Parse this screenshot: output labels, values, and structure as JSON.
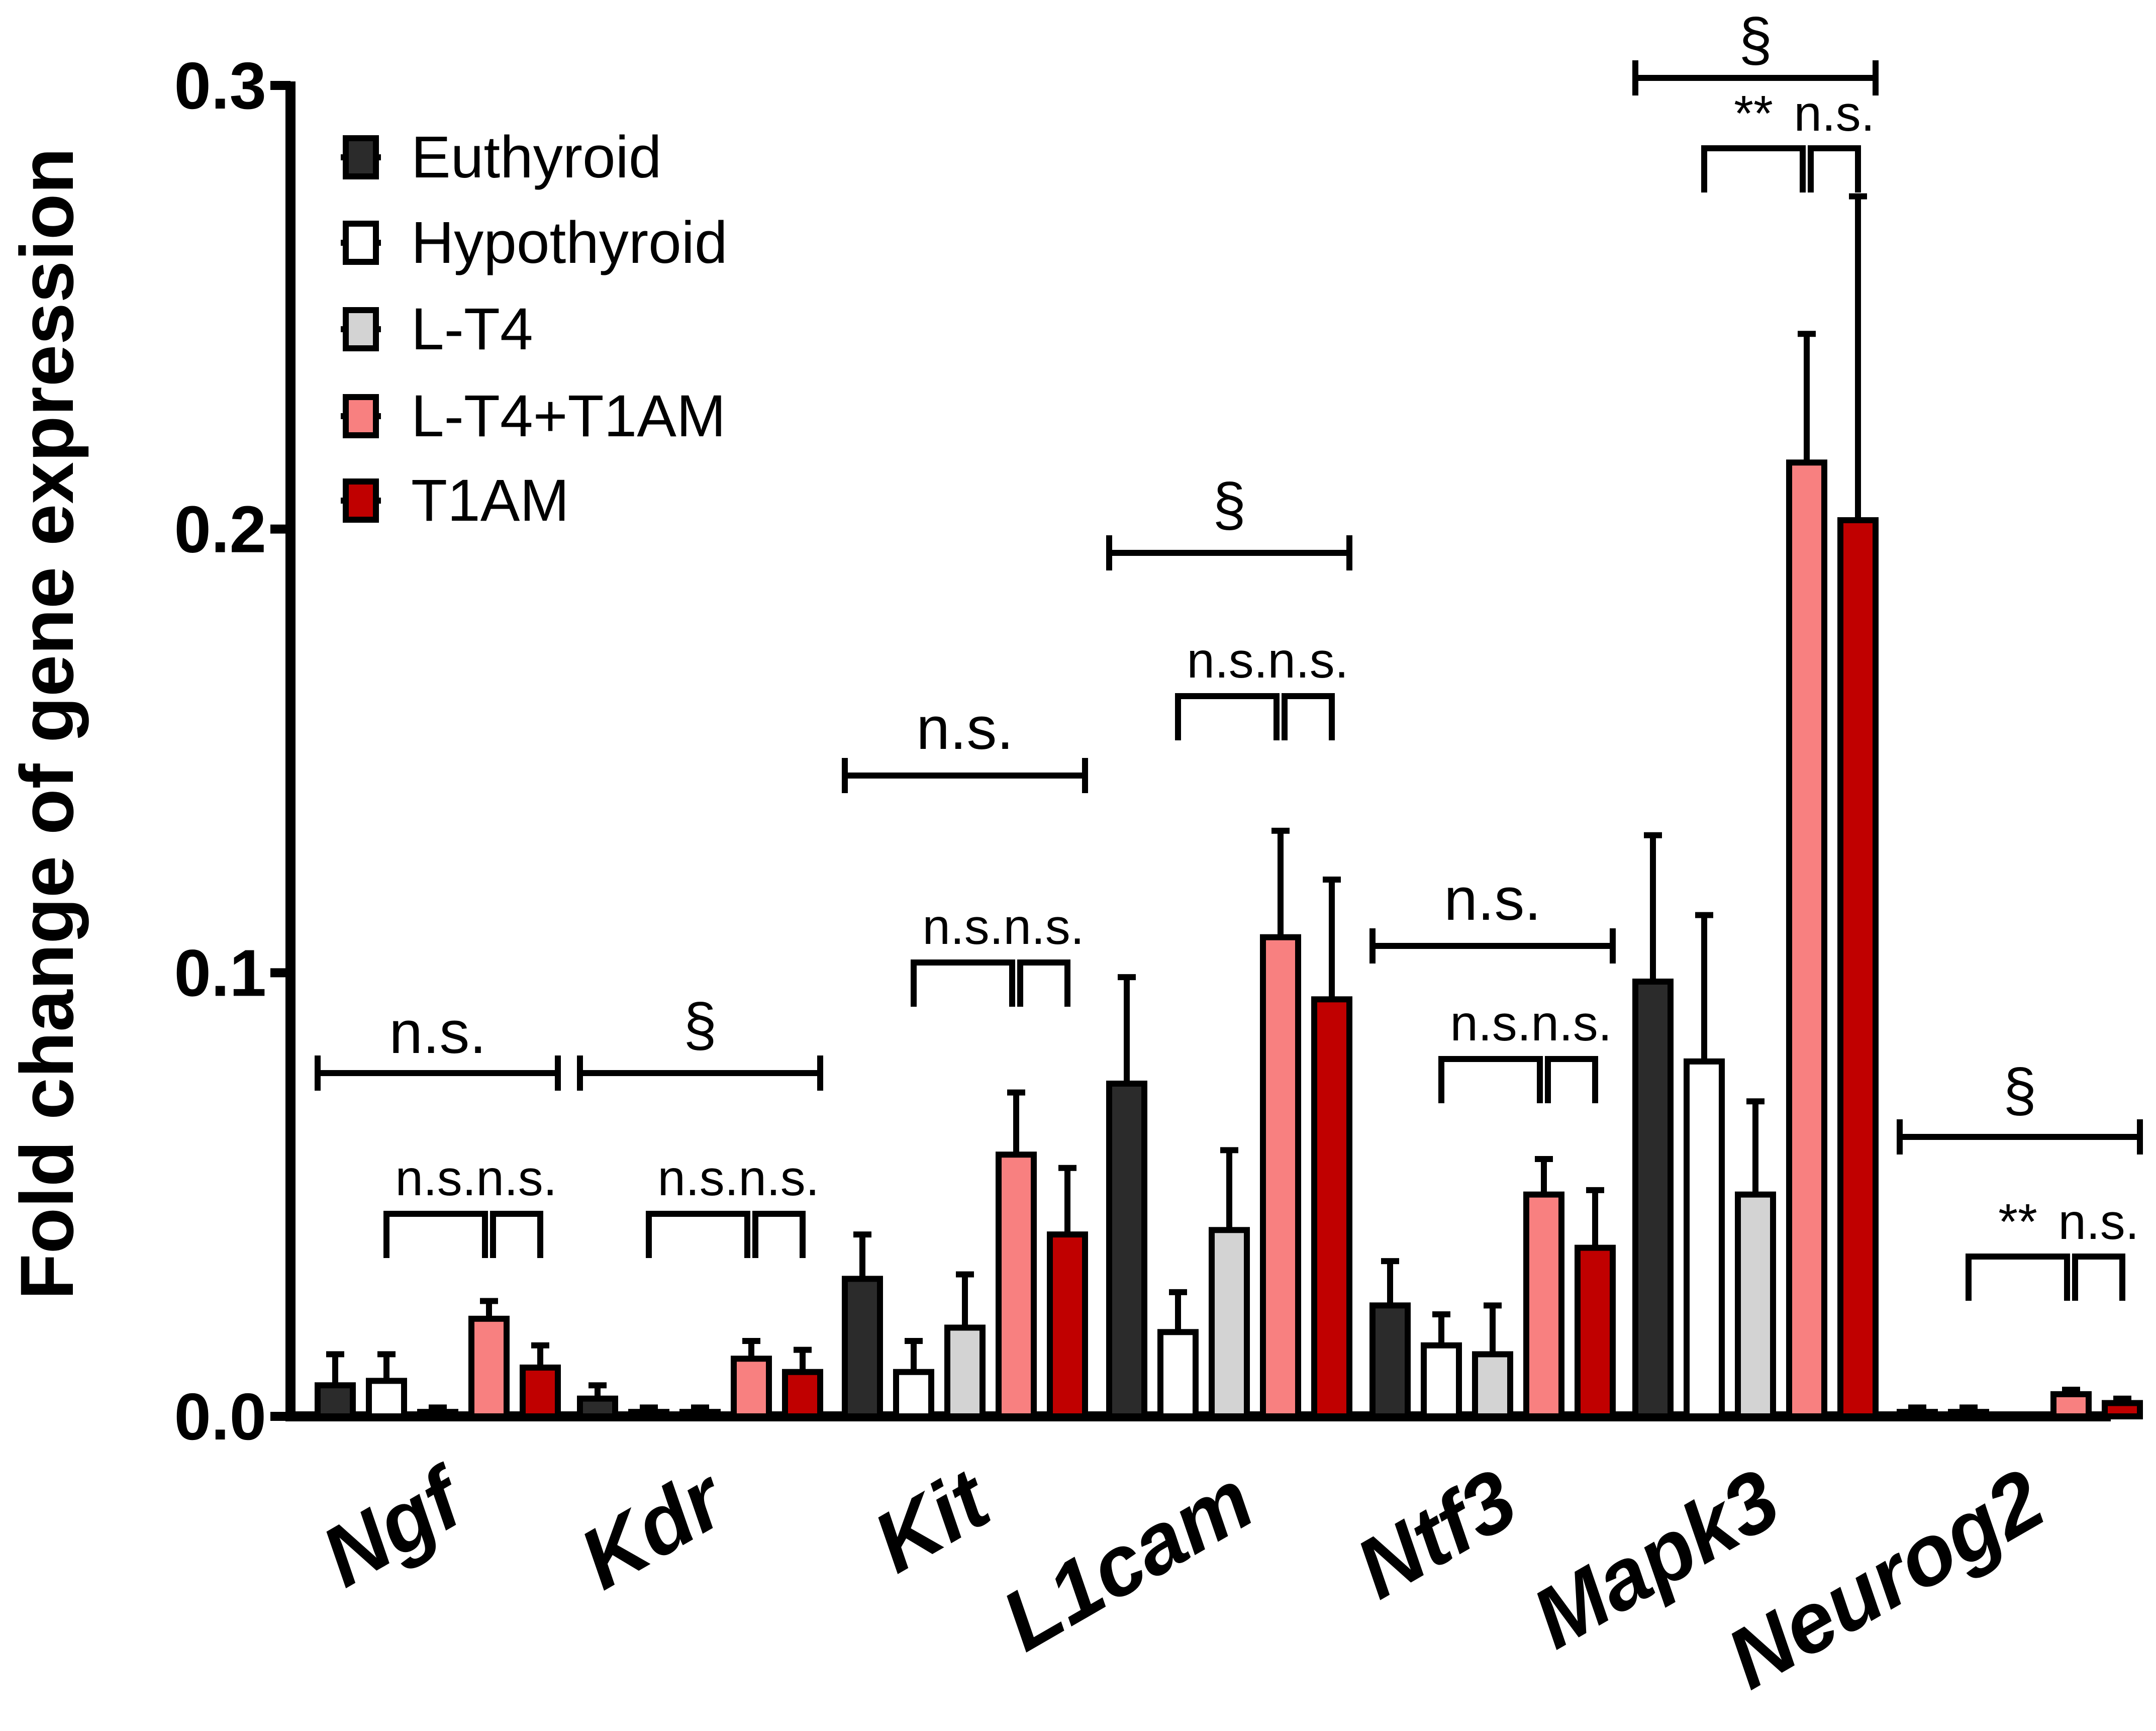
{
  "chart_data": {
    "type": "bar",
    "title": "",
    "xlabel": "",
    "ylabel": "Fold change of gene expression",
    "ylim": [
      0,
      0.3
    ],
    "yticks": [
      "0.0",
      "0.1",
      "0.2",
      "0.3"
    ],
    "ytick_values": [
      0,
      0.1,
      0.2,
      0.3
    ],
    "grid": false,
    "legend_position": "top-left",
    "categories": [
      "Ngf",
      "Kdr",
      "Kit",
      "L1cam",
      "Ntf3",
      "Mapk3",
      "Neurog2"
    ],
    "series": [
      {
        "name": "Euthyroid",
        "color": "#2b2b2b",
        "values": [
          0.007,
          0.004,
          0.031,
          0.075,
          0.025,
          0.098,
          0.001
        ],
        "errors": [
          0.007,
          0.003,
          0.01,
          0.024,
          0.01,
          0.033,
          0.001
        ]
      },
      {
        "name": "Hypothyroid",
        "color": "#ffffff",
        "values": [
          0.008,
          0.001,
          0.01,
          0.019,
          0.016,
          0.08,
          0.001
        ],
        "errors": [
          0.006,
          0.001,
          0.007,
          0.009,
          0.007,
          0.033,
          0.001
        ]
      },
      {
        "name": "L-T4",
        "color": "#d3d3d3",
        "values": [
          0.001,
          0.001,
          0.02,
          0.042,
          0.014,
          0.05,
          0.0
        ],
        "errors": [
          0.001,
          0.001,
          0.012,
          0.018,
          0.011,
          0.021,
          0.0
        ]
      },
      {
        "name": "L-T4+T1AM",
        "color": "#f88080",
        "values": [
          0.022,
          0.013,
          0.059,
          0.108,
          0.05,
          0.215,
          0.005
        ],
        "errors": [
          0.004,
          0.004,
          0.014,
          0.024,
          0.008,
          0.029,
          0.001
        ]
      },
      {
        "name": "T1AM",
        "color": "#c00000",
        "values": [
          0.011,
          0.01,
          0.041,
          0.094,
          0.038,
          0.202,
          0.003
        ],
        "errors": [
          0.005,
          0.005,
          0.015,
          0.027,
          0.013,
          0.073,
          0.001
        ]
      }
    ],
    "annotations": [
      {
        "category": "Ngf",
        "overall": "n.s.",
        "pair1": "n.s.",
        "pair2": "n.s."
      },
      {
        "category": "Kdr",
        "overall": "§",
        "pair1": "n.s.",
        "pair2": "n.s."
      },
      {
        "category": "Kit",
        "overall": "n.s.",
        "pair1": "n.s.",
        "pair2": "n.s."
      },
      {
        "category": "L1cam",
        "overall": "§",
        "pair1": "n.s.",
        "pair2": "n.s."
      },
      {
        "category": "Ntf3",
        "overall": "n.s.",
        "pair1": "n.s.",
        "pair2": "n.s."
      },
      {
        "category": "Mapk3",
        "overall": "§",
        "pair1": "**",
        "pair2": "n.s."
      },
      {
        "category": "Neurog2",
        "overall": "§",
        "pair1": "**",
        "pair2": "n.s."
      }
    ]
  }
}
